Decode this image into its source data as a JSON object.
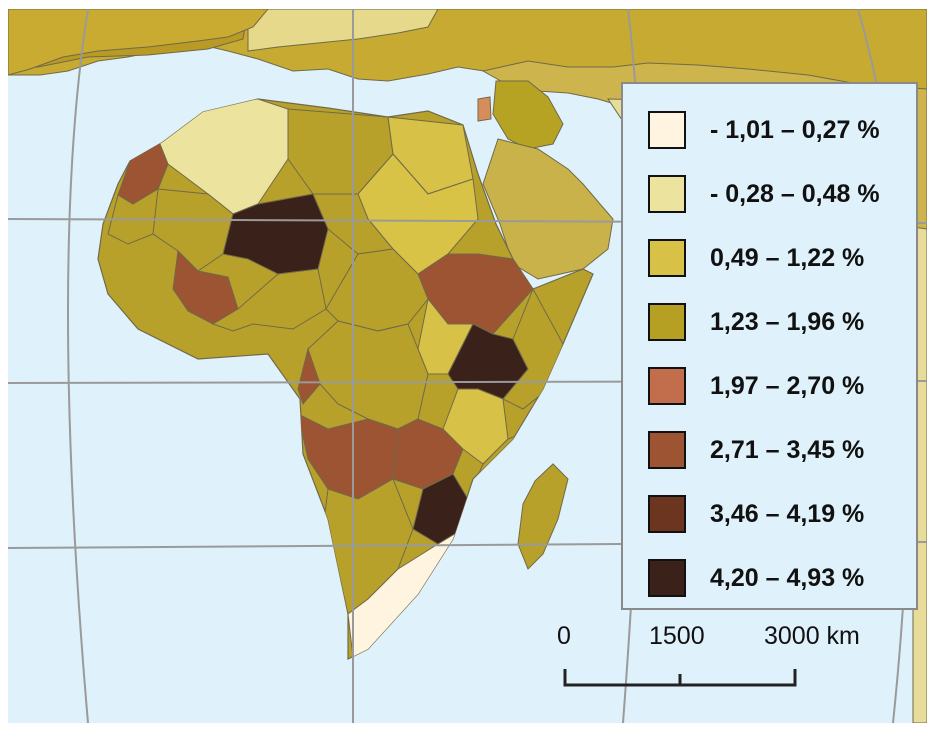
{
  "legend": {
    "items": [
      {
        "label": "- 1,01 – 0,27 %",
        "color": "#fff4df"
      },
      {
        "label": "- 0,28 – 0,48 %",
        "color": "#ece39f"
      },
      {
        "label": "0,49 – 1,22 %",
        "color": "#d7c146"
      },
      {
        "label": "1,23 – 1,96 %",
        "color": "#b6a024"
      },
      {
        "label": "1,97 – 2,70 %",
        "color": "#c26d4b"
      },
      {
        "label": "2,71 – 3,45 %",
        "color": "#9c5433"
      },
      {
        "label": "3,46 – 4,19 %",
        "color": "#6b3520"
      },
      {
        "label": "4,20 – 4,93 %",
        "color": "#3a211a"
      }
    ]
  },
  "scale": {
    "labels": [
      "0",
      "1500",
      "3000 km"
    ]
  },
  "map": {
    "ocean_color": "#dff1fb",
    "graticule_color": "#9a9a9a",
    "border_color": "#6f6a4a"
  }
}
